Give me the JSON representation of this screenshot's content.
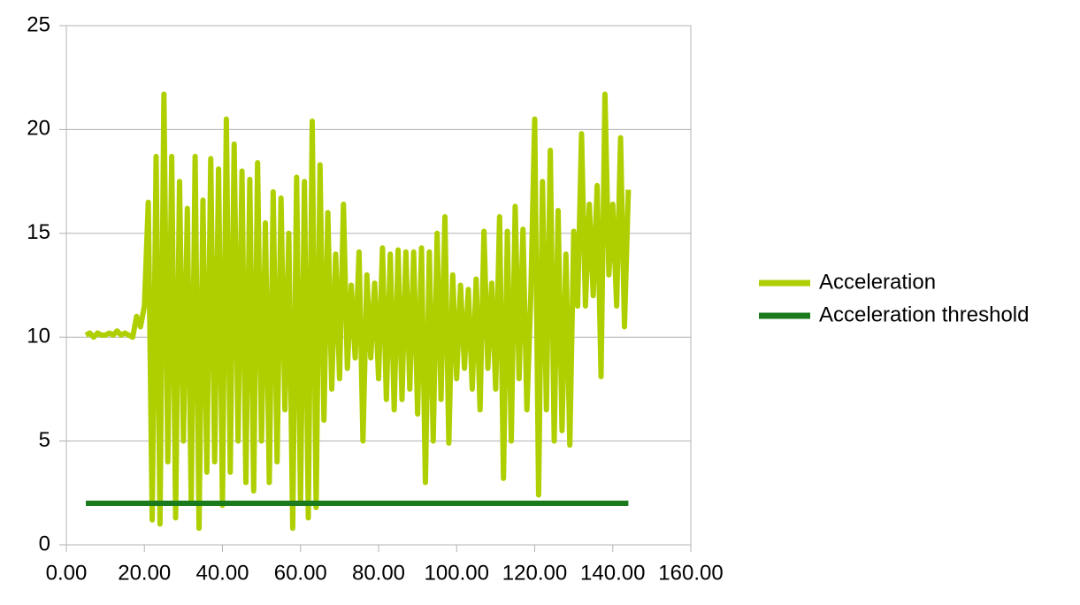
{
  "chart_data": {
    "type": "line",
    "xlim": [
      0,
      160
    ],
    "xticks": [
      {
        "value": 0,
        "label": "0.00"
      },
      {
        "value": 20,
        "label": "20.00"
      },
      {
        "value": 40,
        "label": "40.00"
      },
      {
        "value": 60,
        "label": "60.00"
      },
      {
        "value": 80,
        "label": "80.00"
      },
      {
        "value": 100,
        "label": "100.00"
      },
      {
        "value": 120,
        "label": "120.00"
      },
      {
        "value": 140,
        "label": "140.00"
      },
      {
        "value": 160,
        "label": "160.00"
      }
    ],
    "ylim": [
      0,
      25
    ],
    "yticks": [
      0,
      5,
      10,
      15,
      20,
      25
    ],
    "grid": true,
    "legend": "right",
    "series": [
      {
        "name": "Acceleration",
        "color": "#b0cf00",
        "x": [
          5,
          6,
          7,
          8,
          9,
          10,
          11,
          12,
          13,
          14,
          15,
          16,
          17,
          18,
          19,
          20,
          21,
          22,
          23,
          24,
          25,
          26,
          27,
          28,
          29,
          30,
          31,
          32,
          33,
          34,
          35,
          36,
          37,
          38,
          39,
          40,
          41,
          42,
          43,
          44,
          45,
          46,
          47,
          48,
          49,
          50,
          51,
          52,
          53,
          54,
          55,
          56,
          57,
          58,
          59,
          60,
          61,
          62,
          63,
          64,
          65,
          66,
          67,
          68,
          69,
          70,
          71,
          72,
          73,
          74,
          75,
          76,
          77,
          78,
          79,
          80,
          81,
          82,
          83,
          84,
          85,
          86,
          87,
          88,
          89,
          90,
          91,
          92,
          93,
          94,
          95,
          96,
          97,
          98,
          99,
          100,
          101,
          102,
          103,
          104,
          105,
          106,
          107,
          108,
          109,
          110,
          111,
          112,
          113,
          114,
          115,
          116,
          117,
          118,
          119,
          120,
          121,
          122,
          123,
          124,
          125,
          126,
          127,
          128,
          129,
          130,
          131,
          132,
          133,
          134,
          135,
          136,
          137,
          138,
          139,
          140,
          141,
          142,
          143,
          144
        ],
        "values": [
          10.1,
          10.2,
          10.0,
          10.2,
          10.1,
          10.1,
          10.2,
          10.1,
          10.3,
          10.1,
          10.2,
          10.1,
          10.0,
          11,
          10.5,
          11.5,
          16.5,
          1.2,
          18.7,
          1.0,
          21.7,
          4,
          18.7,
          1.3,
          17.5,
          5,
          16.2,
          2,
          18.7,
          0.8,
          16.6,
          3.5,
          18.6,
          4,
          18.1,
          1.9,
          20.5,
          3.5,
          19.3,
          5,
          18,
          3,
          17.6,
          2.6,
          18.4,
          5,
          15.5,
          3,
          17,
          4,
          16.7,
          6.5,
          15,
          0.8,
          17.7,
          2,
          17.5,
          1.3,
          20.4,
          1.8,
          18.3,
          6,
          16,
          7.5,
          14,
          8,
          16.4,
          8.5,
          12.5,
          9,
          14.1,
          5,
          13,
          9,
          12.6,
          8,
          14.3,
          7,
          14,
          6.5,
          14.2,
          7,
          14.1,
          7.5,
          14.1,
          6.3,
          14.3,
          3,
          14.1,
          5,
          15,
          7,
          15.8,
          4.9,
          13,
          8,
          12.5,
          8.5,
          12.3,
          7.5,
          12.8,
          6.5,
          15.1,
          8.5,
          12.6,
          7.5,
          15.8,
          3.2,
          15.1,
          5,
          16.3,
          8,
          15.2,
          6.5,
          12,
          20.5,
          2.4,
          17.5,
          6.5,
          19,
          5,
          16.1,
          5.5,
          14,
          4.8,
          15.1,
          11.5,
          19.8,
          11.5,
          16.4,
          12,
          17.3,
          8.1,
          21.7,
          13,
          16.4,
          11.5,
          19.6,
          10.5,
          17.1
        ]
      },
      {
        "name": "Acceleration threshold",
        "color": "#1b7a1b",
        "x": [
          5,
          144
        ],
        "values": [
          2,
          2
        ]
      }
    ]
  }
}
